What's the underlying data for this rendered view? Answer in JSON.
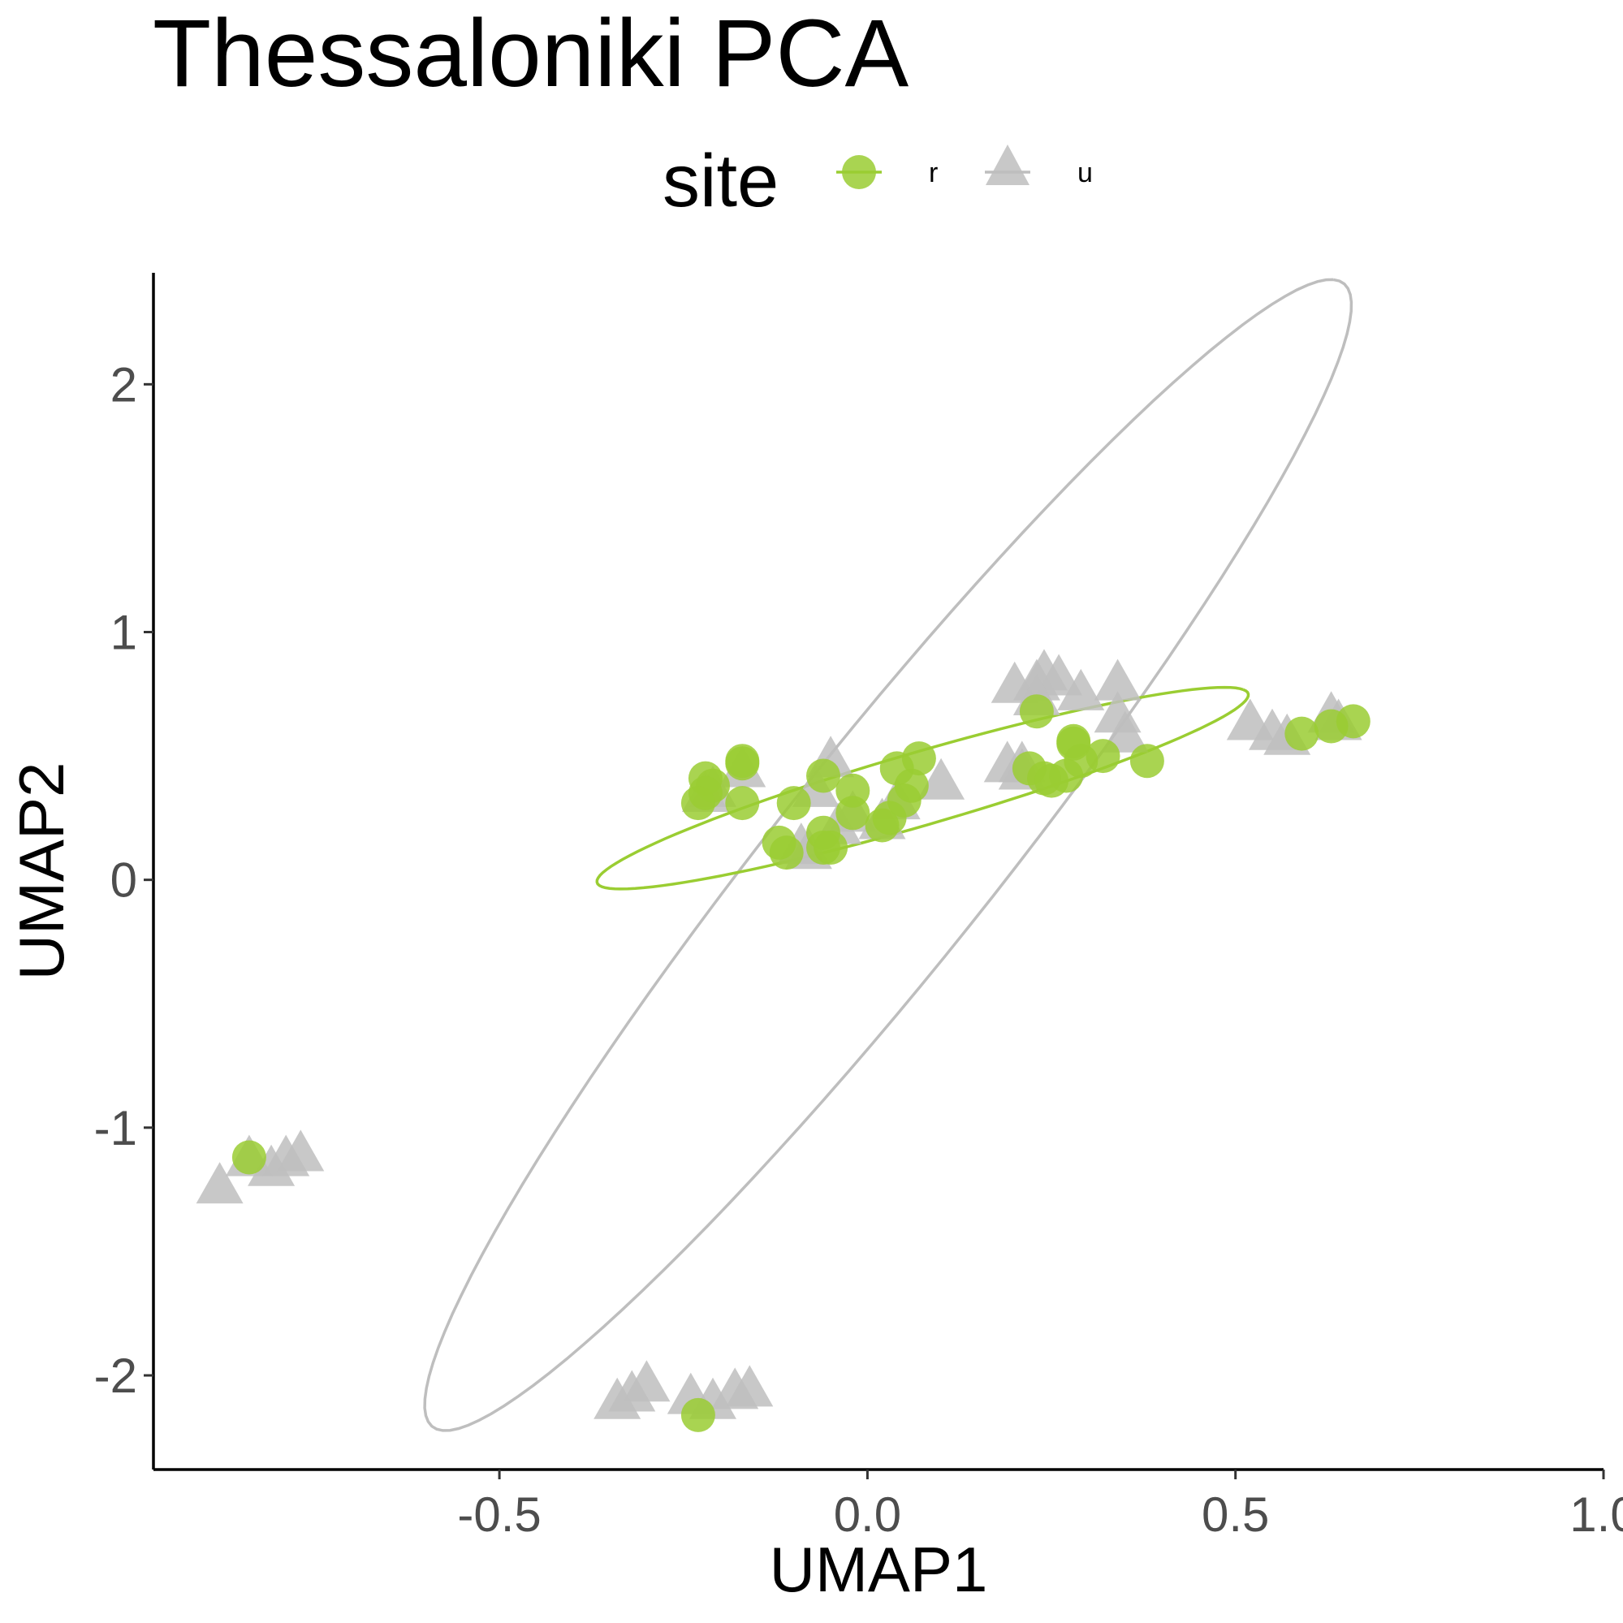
{
  "chart_data": {
    "type": "scatter",
    "title": "Thessaloniki PCA",
    "xlabel": "UMAP1",
    "ylabel": "UMAP2",
    "xlim": [
      -0.97,
      1.0
    ],
    "ylim": [
      -2.38,
      2.45
    ],
    "x_ticks": [
      -0.5,
      0.0,
      0.5,
      1.0
    ],
    "x_tick_labels": [
      "-0.5",
      "0.0",
      "0.5",
      "1.0"
    ],
    "y_ticks": [
      -2,
      -1,
      0,
      1,
      2
    ],
    "y_tick_labels": [
      "-2",
      "-1",
      "0",
      "1",
      "2"
    ],
    "grid": false,
    "legend": {
      "title": "site",
      "position": "top",
      "entries": [
        {
          "label": "r",
          "shape": "circle",
          "color": "#9acd32"
        },
        {
          "label": "u",
          "shape": "triangle",
          "color": "#bebebe"
        }
      ]
    },
    "series": [
      {
        "name": "u",
        "shape": "triangle",
        "color": "#bebebe",
        "x": [
          0.24,
          0.26,
          0.23,
          0.2,
          0.29,
          0.34,
          0.34,
          0.35,
          0.19,
          0.21,
          0.21,
          0.23,
          0.52,
          0.55,
          0.57,
          0.63,
          0.64,
          0.1,
          -0.05,
          -0.07,
          -0.08,
          -0.09,
          -0.17,
          -0.21,
          -0.22,
          -0.04,
          -0.02,
          0.02,
          0.04,
          -0.88,
          -0.84,
          -0.81,
          -0.79,
          -0.77,
          -0.3,
          -0.32,
          -0.34,
          -0.24,
          -0.21,
          -0.18,
          -0.16
        ],
        "y": [
          0.82,
          0.8,
          0.78,
          0.77,
          0.74,
          0.78,
          0.65,
          0.57,
          0.45,
          0.42,
          0.45,
          0.72,
          0.62,
          0.58,
          0.56,
          0.65,
          0.62,
          0.38,
          0.47,
          0.35,
          0.1,
          0.12,
          0.43,
          0.35,
          0.33,
          0.2,
          0.25,
          0.22,
          0.3,
          -1.25,
          -1.14,
          -1.18,
          -1.14,
          -1.12,
          -2.05,
          -2.09,
          -2.12,
          -2.1,
          -2.12,
          -2.08,
          -2.07
        ]
      },
      {
        "name": "r",
        "shape": "circle",
        "color": "#9acd32",
        "x": [
          -0.22,
          -0.21,
          -0.22,
          -0.23,
          -0.17,
          -0.17,
          -0.17,
          -0.1,
          -0.06,
          -0.02,
          -0.12,
          -0.11,
          -0.06,
          -0.06,
          -0.05,
          -0.02,
          0.02,
          0.03,
          0.04,
          0.05,
          0.06,
          0.07,
          0.23,
          0.22,
          0.24,
          0.25,
          0.27,
          0.28,
          0.28,
          0.29,
          0.32,
          0.38,
          0.59,
          0.63,
          0.66,
          -0.84,
          -0.23
        ],
        "y": [
          0.41,
          0.38,
          0.35,
          0.31,
          0.48,
          0.47,
          0.31,
          0.31,
          0.42,
          0.36,
          0.15,
          0.11,
          0.19,
          0.13,
          0.13,
          0.27,
          0.22,
          0.25,
          0.45,
          0.32,
          0.38,
          0.49,
          0.68,
          0.45,
          0.41,
          0.4,
          0.42,
          0.55,
          0.56,
          0.48,
          0.5,
          0.48,
          0.59,
          0.62,
          0.64,
          -1.12,
          -2.16
        ]
      }
    ],
    "ellipses": [
      {
        "series": "u",
        "color": "#bebebe",
        "center": [
          0.028,
          0.1
        ],
        "semi_major": 2.4,
        "semi_minor": 0.18,
        "angle_deg": 75.4
      },
      {
        "series": "r",
        "color": "#9acd32",
        "center": [
          0.075,
          0.37
        ],
        "semi_major": 0.59,
        "semi_minor": 0.115,
        "angle_deg": 42.4
      }
    ]
  }
}
